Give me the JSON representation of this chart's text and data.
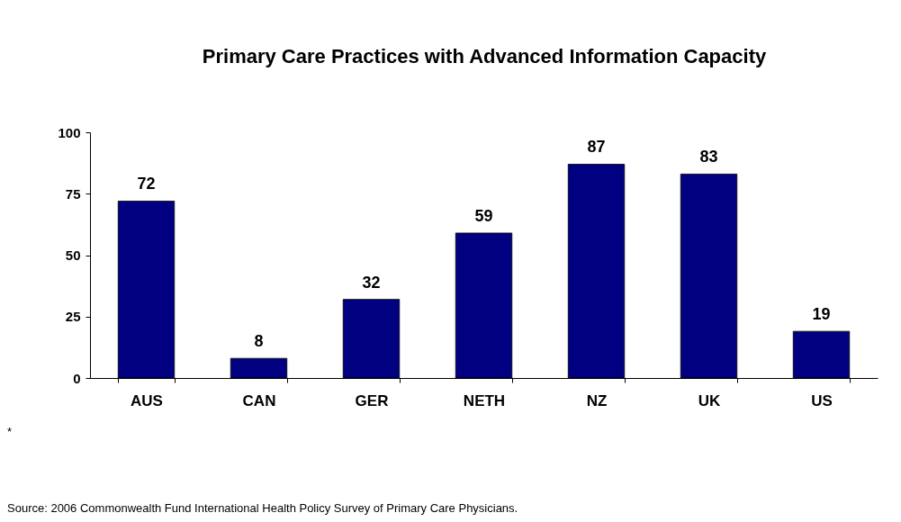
{
  "chart_data": {
    "type": "bar",
    "title": "Primary Care Practices with Advanced Information Capacity",
    "categories": [
      "AUS",
      "CAN",
      "GER",
      "NETH",
      "NZ",
      "UK",
      "US"
    ],
    "values": [
      72,
      8,
      32,
      59,
      87,
      83,
      19
    ],
    "color": "#000080",
    "ylim": [
      0,
      100
    ],
    "yticks": [
      0,
      25,
      50,
      75,
      100
    ],
    "grid": false,
    "data_labels": true,
    "annotations": [
      "*",
      "Source: 2006 Commonwealth Fund International Health Policy Survey of Primary Care Physicians."
    ]
  }
}
